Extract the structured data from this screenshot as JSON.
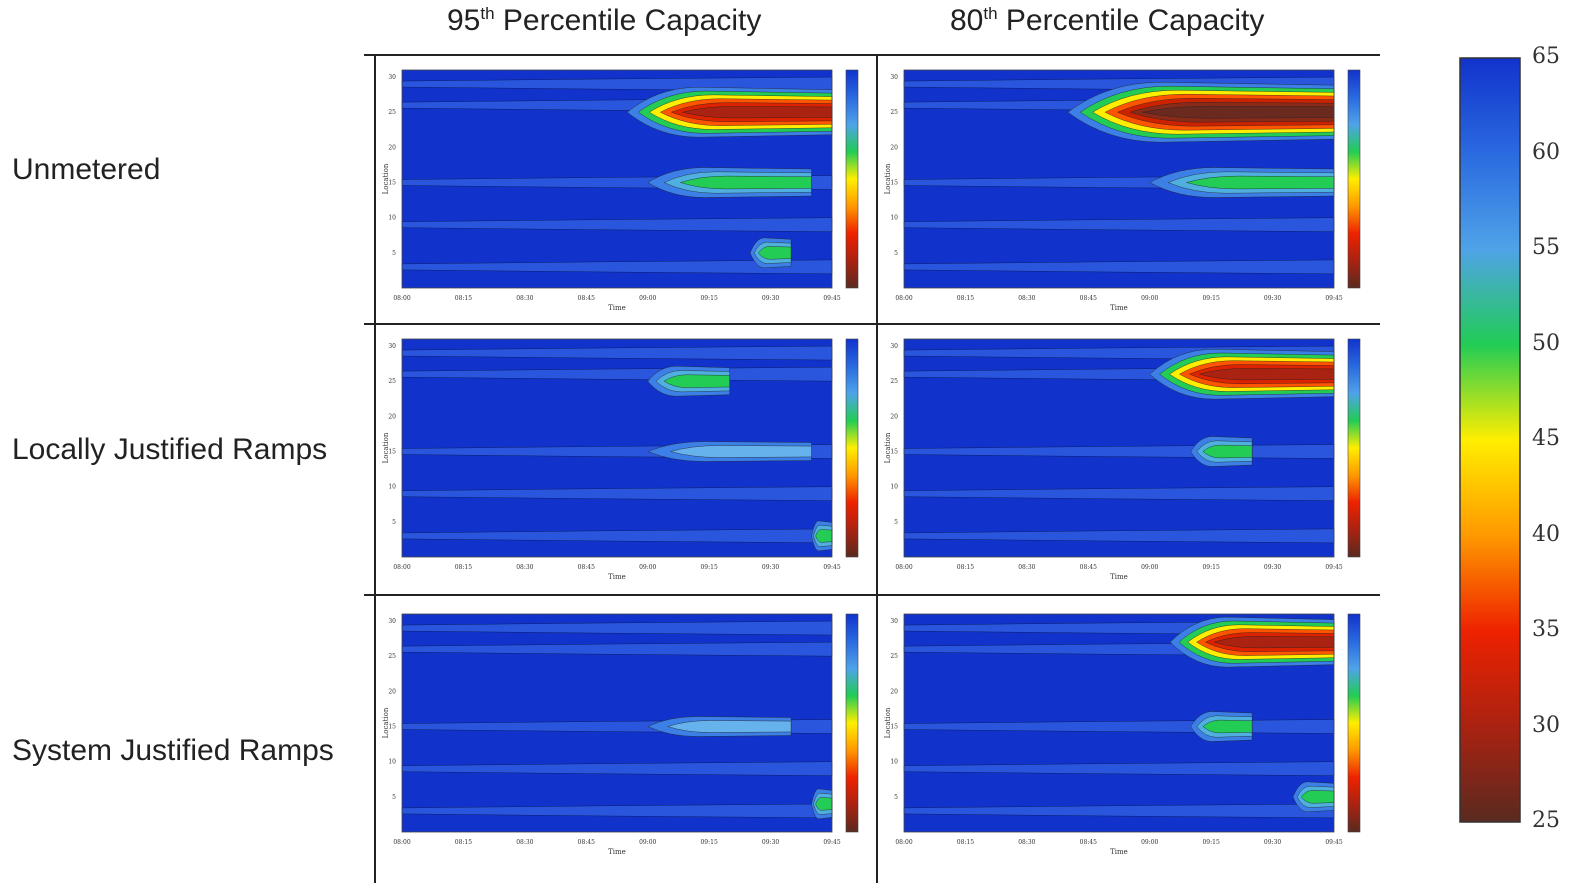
{
  "columns": [
    {
      "prefix": "95",
      "sup": "th",
      "rest": " Percentile Capacity"
    },
    {
      "prefix": "80",
      "sup": "th",
      "rest": " Percentile Capacity"
    }
  ],
  "rows": [
    "Unmetered",
    "Locally Justified Ramps",
    "System Justified Ramps"
  ],
  "colorbar": {
    "ticks": [
      "65",
      "60",
      "55",
      "50",
      "45",
      "40",
      "35",
      "30",
      "25"
    ],
    "colors": [
      "#1133cc",
      "#2a6ae0",
      "#4fa3e8",
      "#22cc55",
      "#ffee00",
      "#ff9900",
      "#ee2200",
      "#aa2211",
      "#5a2a20"
    ]
  },
  "chart_data": {
    "type": "heatmap",
    "title": "",
    "xlabel": "Time",
    "ylabel": "Location",
    "x_ticks": [
      "08:00",
      "08:15",
      "08:30",
      "08:45",
      "09:00",
      "09:15",
      "09:30",
      "09:45"
    ],
    "y_ticks": [
      "5",
      "10",
      "15",
      "20",
      "25",
      "30"
    ],
    "zlim": [
      25,
      65
    ],
    "panels": [
      {
        "row": "Unmetered",
        "column": "95th Percentile Capacity",
        "congestion": [
          {
            "location": 25,
            "start": "08:55",
            "end": "09:45",
            "min_speed": 35,
            "level": 3
          },
          {
            "location": 15,
            "start": "09:00",
            "end": "09:40",
            "min_speed": 52,
            "level": 1
          },
          {
            "location": 5,
            "start": "09:25",
            "end": "09:35",
            "min_speed": 52,
            "level": 1
          }
        ]
      },
      {
        "row": "Unmetered",
        "column": "80th Percentile Capacity",
        "congestion": [
          {
            "location": 25,
            "start": "08:40",
            "end": "09:45",
            "min_speed": 25,
            "level": 4
          },
          {
            "location": 15,
            "start": "09:00",
            "end": "09:45",
            "min_speed": 52,
            "level": 1
          }
        ]
      },
      {
        "row": "Locally Justified Ramps",
        "column": "95th Percentile Capacity",
        "congestion": [
          {
            "location": 25,
            "start": "09:00",
            "end": "09:20",
            "min_speed": 52,
            "level": 1
          },
          {
            "location": 15,
            "start": "09:00",
            "end": "09:40",
            "min_speed": 55,
            "level": 0
          },
          {
            "location": 3,
            "start": "09:40",
            "end": "09:45",
            "min_speed": 52,
            "level": 1
          }
        ]
      },
      {
        "row": "Locally Justified Ramps",
        "column": "80th Percentile Capacity",
        "congestion": [
          {
            "location": 26,
            "start": "09:00",
            "end": "09:45",
            "min_speed": 35,
            "level": 3
          },
          {
            "location": 15,
            "start": "09:10",
            "end": "09:25",
            "min_speed": 52,
            "level": 1
          }
        ]
      },
      {
        "row": "System Justified Ramps",
        "column": "95th Percentile Capacity",
        "congestion": [
          {
            "location": 15,
            "start": "09:00",
            "end": "09:35",
            "min_speed": 55,
            "level": 0
          },
          {
            "location": 4,
            "start": "09:40",
            "end": "09:45",
            "min_speed": 52,
            "level": 1
          }
        ]
      },
      {
        "row": "System Justified Ramps",
        "column": "80th Percentile Capacity",
        "congestion": [
          {
            "location": 27,
            "start": "09:05",
            "end": "09:45",
            "min_speed": 35,
            "level": 3
          },
          {
            "location": 15,
            "start": "09:10",
            "end": "09:25",
            "min_speed": 52,
            "level": 1
          },
          {
            "location": 5,
            "start": "09:35",
            "end": "09:45",
            "min_speed": 52,
            "level": 1
          }
        ]
      }
    ]
  }
}
